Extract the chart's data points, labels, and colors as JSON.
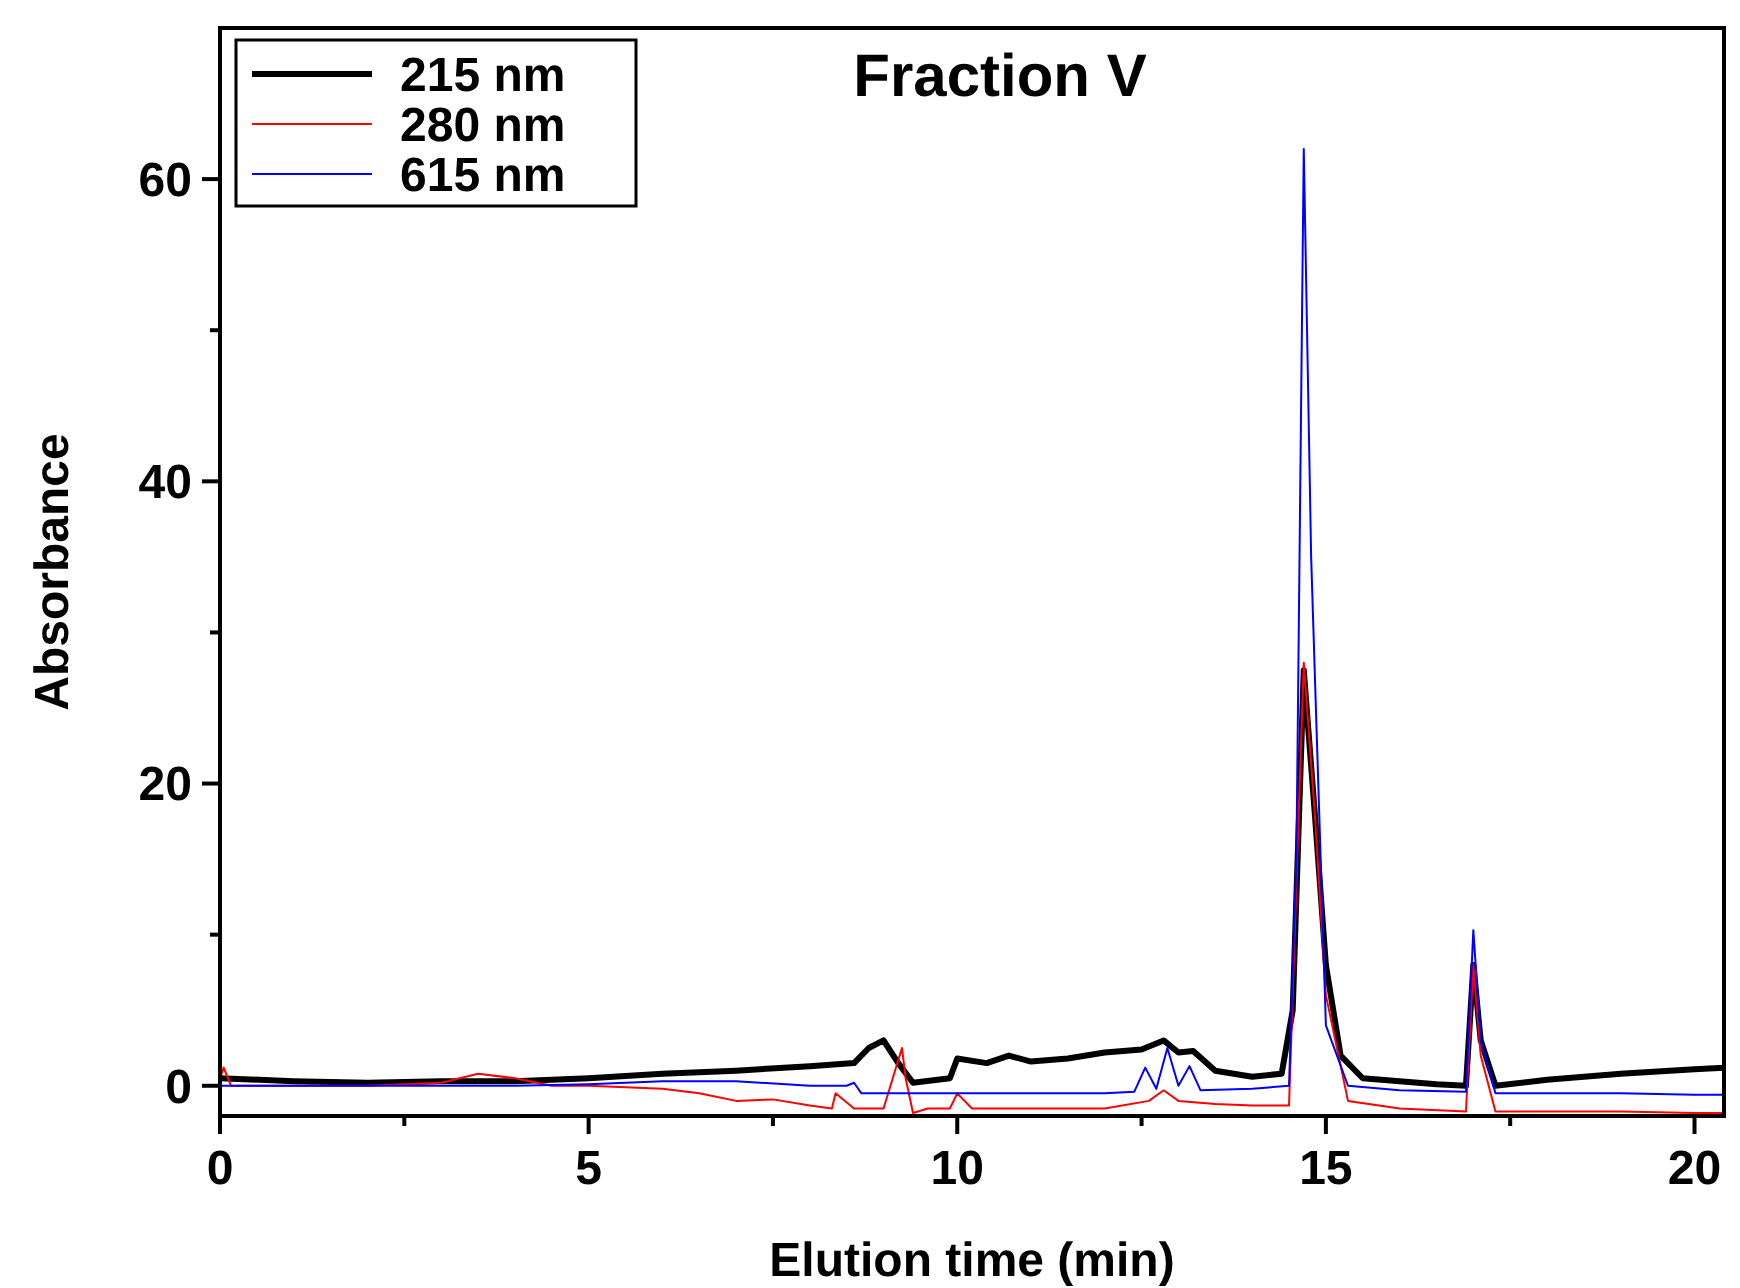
{
  "chart_data": {
    "type": "line",
    "title": "Fraction V",
    "xlabel": "Elution time (min)",
    "ylabel": "Absorbance",
    "xlim": [
      0,
      20.4
    ],
    "ylim": [
      -2,
      70
    ],
    "xticks": [
      0,
      {
        "value": 2.5,
        "label": null
      },
      5,
      {
        "value": 7.5,
        "label": null
      },
      10,
      {
        "value": 12.5,
        "label": null
      },
      15,
      {
        "value": 17.5,
        "label": null
      },
      20
    ],
    "yticks": [
      0,
      {
        "value": 10,
        "label": null
      },
      20,
      {
        "value": 30,
        "label": null
      },
      40,
      {
        "value": 50,
        "label": null
      },
      60
    ],
    "legend": "top left",
    "grid": false,
    "series": [
      {
        "name": "215 nm",
        "color": "#000000",
        "x": [
          0,
          1,
          2,
          3,
          4,
          5,
          6,
          7,
          8,
          8.6,
          8.8,
          9.0,
          9.2,
          9.4,
          9.9,
          10.0,
          10.4,
          10.7,
          11,
          11.5,
          12,
          12.5,
          12.8,
          13.0,
          13.2,
          13.5,
          14,
          14.4,
          14.55,
          14.7,
          14.85,
          15.0,
          15.2,
          15.5,
          16,
          16.5,
          16.9,
          17.0,
          17.1,
          17.3,
          18,
          19,
          20,
          20.4
        ],
        "values": [
          0.5,
          0.3,
          0.2,
          0.3,
          0.3,
          0.5,
          0.8,
          1.0,
          1.3,
          1.5,
          2.5,
          3.0,
          1.5,
          0.2,
          0.5,
          1.8,
          1.5,
          2.0,
          1.6,
          1.8,
          2.2,
          2.4,
          3.0,
          2.2,
          2.3,
          1.0,
          0.6,
          0.8,
          5,
          27.5,
          18,
          8,
          2,
          0.5,
          0.3,
          0.1,
          0,
          8,
          3,
          0,
          0.4,
          0.8,
          1.1,
          1.2
        ]
      },
      {
        "name": "280 nm",
        "color": "#ff0000",
        "x": [
          0,
          0.05,
          0.15,
          0.5,
          1,
          2,
          3,
          3.5,
          4,
          4.5,
          5,
          6,
          6.5,
          7,
          7.5,
          8,
          8.3,
          8.35,
          8.6,
          9.0,
          9.25,
          9.3,
          9.4,
          9.6,
          9.9,
          10.0,
          10.2,
          11,
          12,
          12.6,
          12.8,
          13.0,
          13.5,
          14,
          14.5,
          14.7,
          14.85,
          15.0,
          15.3,
          16,
          16.9,
          17.0,
          17.1,
          17.3,
          18,
          19,
          20,
          20.4
        ],
        "values": [
          0.5,
          1.2,
          0,
          0,
          0,
          0,
          0.2,
          0.8,
          0.5,
          0,
          0,
          -0.2,
          -0.5,
          -1,
          -0.9,
          -1.3,
          -1.5,
          -0.5,
          -1.5,
          -1.5,
          2.5,
          0.5,
          -1.8,
          -1.5,
          -1.5,
          -0.5,
          -1.5,
          -1.5,
          -1.5,
          -1.0,
          -0.3,
          -1.0,
          -1.2,
          -1.3,
          -1.3,
          28,
          18,
          6,
          -1,
          -1.5,
          -1.7,
          8,
          2,
          -1.7,
          -1.7,
          -1.7,
          -1.8,
          -1.8
        ]
      },
      {
        "name": "615 nm",
        "color": "#0000ff",
        "x": [
          0,
          2,
          4,
          5,
          6,
          6.5,
          7,
          8,
          8.5,
          8.6,
          8.7,
          9,
          10,
          11,
          12,
          12.4,
          12.55,
          12.7,
          12.85,
          13.0,
          13.15,
          13.3,
          14,
          14.5,
          14.6,
          14.7,
          14.8,
          15.0,
          15.3,
          16,
          16.9,
          17.0,
          17.1,
          17.3,
          18,
          19,
          20,
          20.4
        ],
        "values": [
          0,
          0,
          0,
          0.1,
          0.3,
          0.3,
          0.3,
          0,
          0,
          0.2,
          -0.5,
          -0.5,
          -0.5,
          -0.5,
          -0.5,
          -0.4,
          1.2,
          -0.2,
          2.5,
          0,
          1.3,
          -0.3,
          -0.2,
          0,
          15,
          62,
          35,
          4,
          0,
          -0.3,
          -0.4,
          10.3,
          3,
          -0.5,
          -0.5,
          -0.5,
          -0.6,
          -0.6
        ]
      }
    ]
  }
}
